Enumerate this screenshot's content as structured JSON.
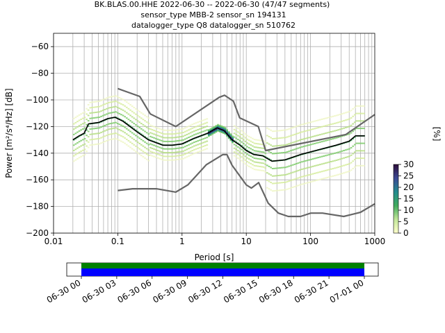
{
  "chart_data": [
    {
      "type": "line",
      "title_lines": [
        "BK.BLAS.00.HHE   2022-06-30 -- 2022-06-30  (47/47 segments)",
        "sensor_type MBB-2 sensor_sn 194131",
        "datalogger_type Q8 datalogger_sn 510762"
      ],
      "xlabel": "Period [s]",
      "ylabel_html": "Power [m²/s⁴/Hz] [dB]",
      "xscale": "log",
      "xlim": [
        0.01,
        1000
      ],
      "ylim": [
        -200,
        -50
      ],
      "x_ticks": [
        0.01,
        0.1,
        1,
        10,
        100,
        1000
      ],
      "x_tick_labels": [
        "0.01",
        "0.1",
        "1",
        "10",
        "100",
        "1000"
      ],
      "y_ticks": [
        -200,
        -180,
        -160,
        -140,
        -120,
        -100,
        -80,
        -60
      ],
      "y_tick_labels": [
        "−200",
        "−180",
        "−160",
        "−140",
        "−120",
        "−100",
        "−80",
        "−60"
      ],
      "grid": true,
      "series": [
        {
          "role": "nhnm",
          "color": "#666666",
          "x": [
            0.1,
            0.22,
            0.32,
            0.8,
            3.8,
            4.6,
            6.3,
            7.9,
            15.4,
            20,
            354.8,
            1000
          ],
          "y": [
            -91.5,
            -97.4,
            -110.5,
            -120,
            -98,
            -96.5,
            -101,
            -113.5,
            -120,
            -138,
            -126,
            -111
          ]
        },
        {
          "role": "nlnm",
          "color": "#666666",
          "x": [
            0.1,
            0.17,
            0.4,
            0.8,
            1.24,
            2.4,
            4.3,
            5,
            6,
            10,
            12,
            15.6,
            21.9,
            31.6,
            45,
            70,
            101,
            154,
            328,
            600,
            1000
          ],
          "y": [
            -168,
            -166.7,
            -166.7,
            -169.2,
            -163.7,
            -148.6,
            -141.1,
            -141.1,
            -149,
            -163.8,
            -166.2,
            -162.1,
            -177.5,
            -185,
            -187.5,
            -187.5,
            -185,
            -185,
            -187.5,
            -184.4,
            -178
          ]
        },
        {
          "role": "mean",
          "color": "#000000",
          "x": [
            0.02,
            0.025,
            0.03,
            0.035,
            0.05,
            0.07,
            0.09,
            0.12,
            0.2,
            0.3,
            0.5,
            0.7,
            1,
            1.5,
            2.5,
            3.5,
            4.5,
            6,
            8,
            10,
            13,
            18,
            25,
            40,
            70,
            120,
            250,
            400,
            500,
            700
          ],
          "y": [
            -130,
            -127,
            -125,
            -118,
            -117,
            -114,
            -113,
            -116,
            -124,
            -130,
            -134,
            -134,
            -133,
            -129,
            -125,
            -121,
            -123,
            -130,
            -134,
            -138,
            -141,
            -142,
            -146,
            -145,
            -141,
            -138,
            -134,
            -131,
            -127,
            -127
          ]
        }
      ],
      "colorbar": {
        "label": "[%]",
        "range": [
          0,
          30
        ],
        "ticks": [
          0,
          5,
          10,
          15,
          20,
          25,
          30
        ],
        "tick_labels": [
          "0",
          "5",
          "10",
          "15",
          "20",
          "25",
          "30"
        ]
      }
    },
    {
      "type": "timeline",
      "x_tick_labels": [
        "06-30 00",
        "06-30 03",
        "06-30 06",
        "06-30 09",
        "06-30 12",
        "06-30 15",
        "06-30 18",
        "06-30 21",
        "07-01 00"
      ],
      "coverage_colors": {
        "top": "#008000",
        "bottom": "#0000ff"
      }
    }
  ]
}
